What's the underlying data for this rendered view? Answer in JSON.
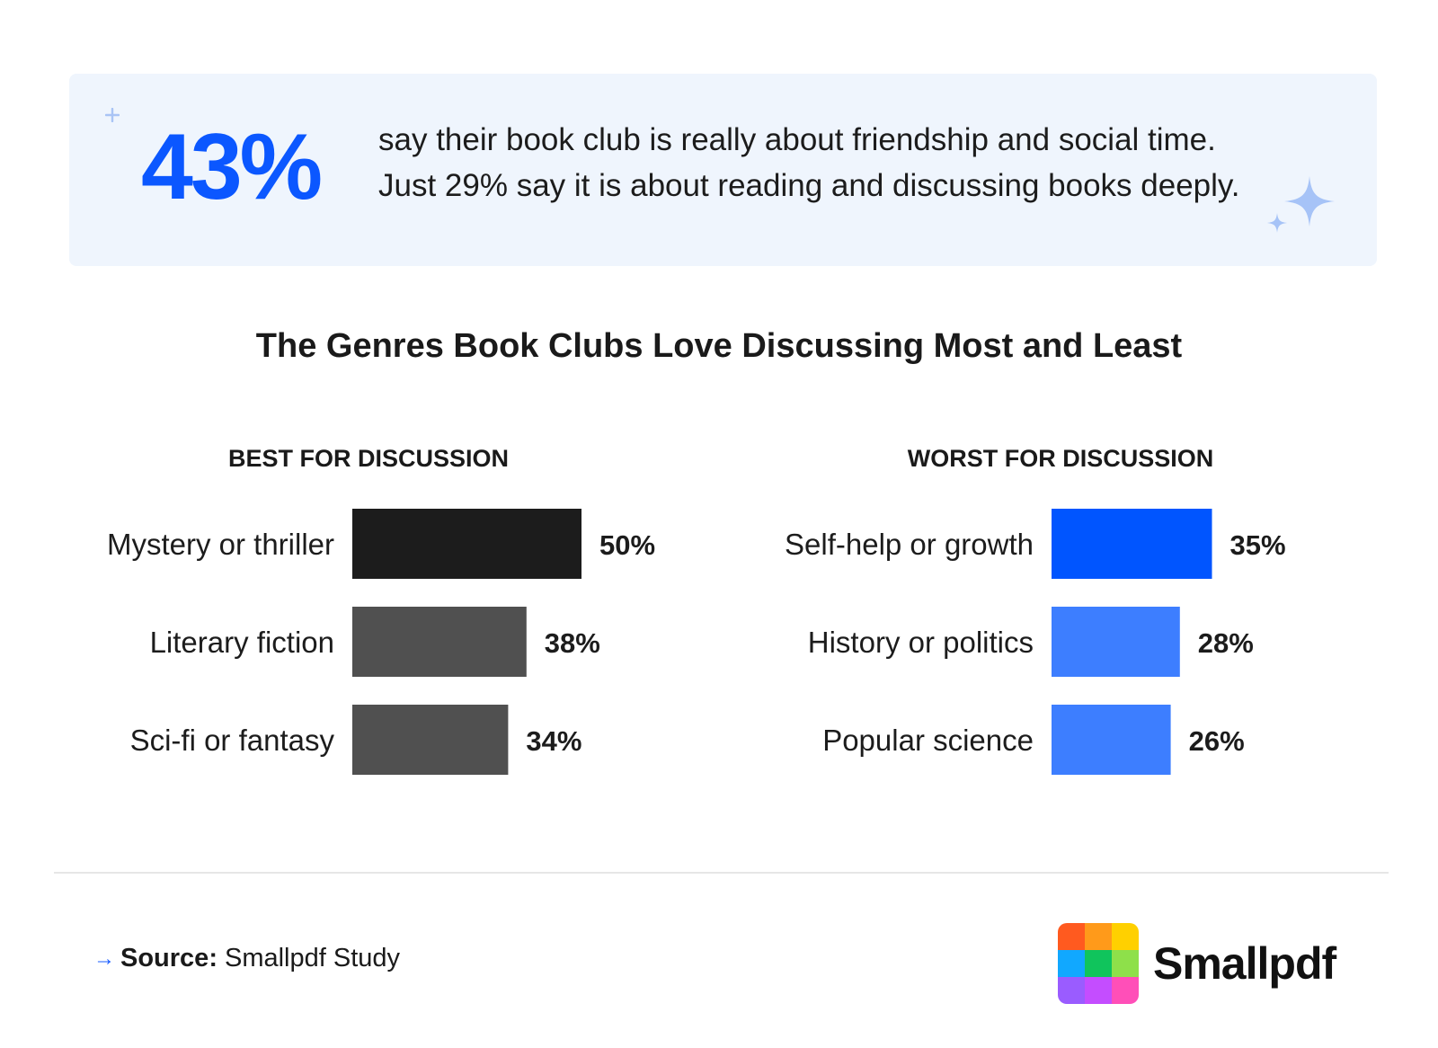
{
  "highlight": {
    "number": "43%",
    "line1": "say their book club is really about friendship and social time.",
    "line2": "Just 29% say it is about reading and discussing books deeply.",
    "number_color": "#0b57ff"
  },
  "chart_data": [
    {
      "type": "bar",
      "orientation": "horizontal",
      "title": "BEST FOR DISCUSSION",
      "categories": [
        "Mystery or thriller",
        "Literary fiction",
        "Sci-fi or fantasy"
      ],
      "values": [
        50,
        38,
        34
      ],
      "value_labels": [
        "50%",
        "38%",
        "34%"
      ],
      "unit": "%",
      "colors": [
        "#1c1c1c",
        "#505050",
        "#505050"
      ]
    },
    {
      "type": "bar",
      "orientation": "horizontal",
      "title": "WORST FOR DISCUSSION",
      "categories": [
        "Self-help or growth",
        "History or politics",
        "Popular science"
      ],
      "values": [
        35,
        28,
        26
      ],
      "value_labels": [
        "35%",
        "28%",
        "26%"
      ],
      "unit": "%",
      "colors": [
        "#0055ff",
        "#3d7eff",
        "#3d7eff"
      ]
    }
  ],
  "main_title": "The Genres Book Clubs Love Discussing Most and Least",
  "footer": {
    "arrow": "→",
    "source_label": "Source:",
    "source_value": "Smallpdf Study"
  },
  "logo": {
    "name": "Smallpdf",
    "tile_colors": [
      "#ff5a1f",
      "#ff9a1a",
      "#ffd000",
      "#11a8ff",
      "#10c45c",
      "#8ee04a",
      "#9a5cff",
      "#c44dff",
      "#ff4fb8"
    ]
  }
}
